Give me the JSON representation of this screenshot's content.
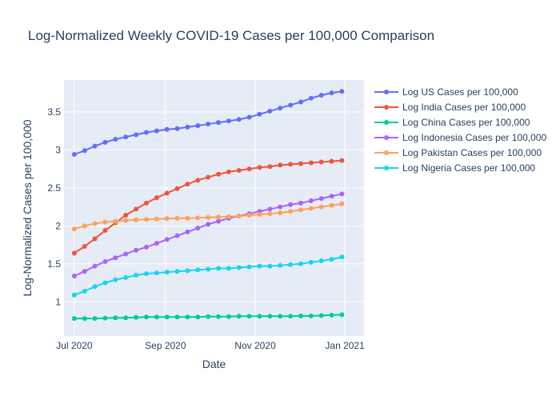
{
  "chart_data": {
    "type": "line",
    "title": "Log-Normalized Weekly COVID-19 Cases per 100,000 Comparison",
    "xlabel": "Date",
    "ylabel": "Log-Normalized Cases per 100,000",
    "xlim": [
      "2020-06-24",
      "2021-01-14"
    ],
    "ylim": [
      0.55,
      3.92
    ],
    "x_ticks": [
      {
        "date": "2020-07-01",
        "label": "Jul 2020"
      },
      {
        "date": "2020-09-01",
        "label": "Sep 2020"
      },
      {
        "date": "2020-11-01",
        "label": "Nov 2020"
      },
      {
        "date": "2021-01-01",
        "label": "Jan 2021"
      }
    ],
    "y_ticks": [
      {
        "value": 1,
        "label": "1"
      },
      {
        "value": 1.5,
        "label": "1.5"
      },
      {
        "value": 2,
        "label": "2"
      },
      {
        "value": 2.5,
        "label": "2.5"
      },
      {
        "value": 3,
        "label": "3"
      },
      {
        "value": 3.5,
        "label": "3.5"
      }
    ],
    "grid": true,
    "legend_position": "right",
    "x": [
      "2020-07-01",
      "2020-07-08",
      "2020-07-15",
      "2020-07-22",
      "2020-07-29",
      "2020-08-05",
      "2020-08-12",
      "2020-08-19",
      "2020-08-26",
      "2020-09-02",
      "2020-09-09",
      "2020-09-16",
      "2020-09-23",
      "2020-09-30",
      "2020-10-07",
      "2020-10-14",
      "2020-10-21",
      "2020-10-28",
      "2020-11-04",
      "2020-11-11",
      "2020-11-18",
      "2020-11-25",
      "2020-12-02",
      "2020-12-09",
      "2020-12-16",
      "2020-12-23",
      "2020-12-30"
    ],
    "series": [
      {
        "name": "Log US Cases per 100,000",
        "color": "#636efa",
        "values": [
          2.94,
          2.99,
          3.05,
          3.1,
          3.14,
          3.17,
          3.2,
          3.23,
          3.25,
          3.27,
          3.28,
          3.3,
          3.32,
          3.34,
          3.36,
          3.38,
          3.4,
          3.43,
          3.47,
          3.51,
          3.55,
          3.59,
          3.63,
          3.68,
          3.72,
          3.75,
          3.77
        ]
      },
      {
        "name": "Log India Cases per 100,000",
        "color": "#ef553b",
        "values": [
          1.64,
          1.73,
          1.83,
          1.94,
          2.04,
          2.14,
          2.22,
          2.3,
          2.37,
          2.43,
          2.49,
          2.55,
          2.6,
          2.64,
          2.68,
          2.71,
          2.73,
          2.75,
          2.77,
          2.78,
          2.8,
          2.81,
          2.82,
          2.83,
          2.84,
          2.85,
          2.86
        ]
      },
      {
        "name": "Log China Cases per 100,000",
        "color": "#00cc96",
        "values": [
          0.78,
          0.78,
          0.78,
          0.785,
          0.79,
          0.79,
          0.795,
          0.8,
          0.8,
          0.8,
          0.8,
          0.8,
          0.8,
          0.805,
          0.805,
          0.805,
          0.81,
          0.81,
          0.81,
          0.81,
          0.81,
          0.81,
          0.815,
          0.815,
          0.82,
          0.825,
          0.83
        ]
      },
      {
        "name": "Log Indonesia Cases per 100,000",
        "color": "#ab63fa",
        "values": [
          1.34,
          1.4,
          1.47,
          1.53,
          1.58,
          1.63,
          1.68,
          1.72,
          1.77,
          1.82,
          1.87,
          1.92,
          1.97,
          2.02,
          2.06,
          2.1,
          2.13,
          2.16,
          2.19,
          2.22,
          2.25,
          2.28,
          2.3,
          2.33,
          2.36,
          2.39,
          2.42
        ]
      },
      {
        "name": "Log Pakistan Cases per 100,000",
        "color": "#ffa15a",
        "values": [
          1.96,
          2.0,
          2.03,
          2.05,
          2.06,
          2.07,
          2.08,
          2.085,
          2.09,
          2.095,
          2.1,
          2.1,
          2.105,
          2.11,
          2.115,
          2.12,
          2.13,
          2.14,
          2.15,
          2.16,
          2.17,
          2.19,
          2.21,
          2.23,
          2.25,
          2.27,
          2.29
        ]
      },
      {
        "name": "Log Nigeria Cases per 100,000",
        "color": "#19d3f3",
        "values": [
          1.09,
          1.14,
          1.2,
          1.25,
          1.29,
          1.32,
          1.35,
          1.37,
          1.38,
          1.39,
          1.4,
          1.41,
          1.42,
          1.43,
          1.44,
          1.44,
          1.45,
          1.46,
          1.47,
          1.47,
          1.48,
          1.49,
          1.5,
          1.52,
          1.54,
          1.56,
          1.59
        ]
      }
    ]
  }
}
